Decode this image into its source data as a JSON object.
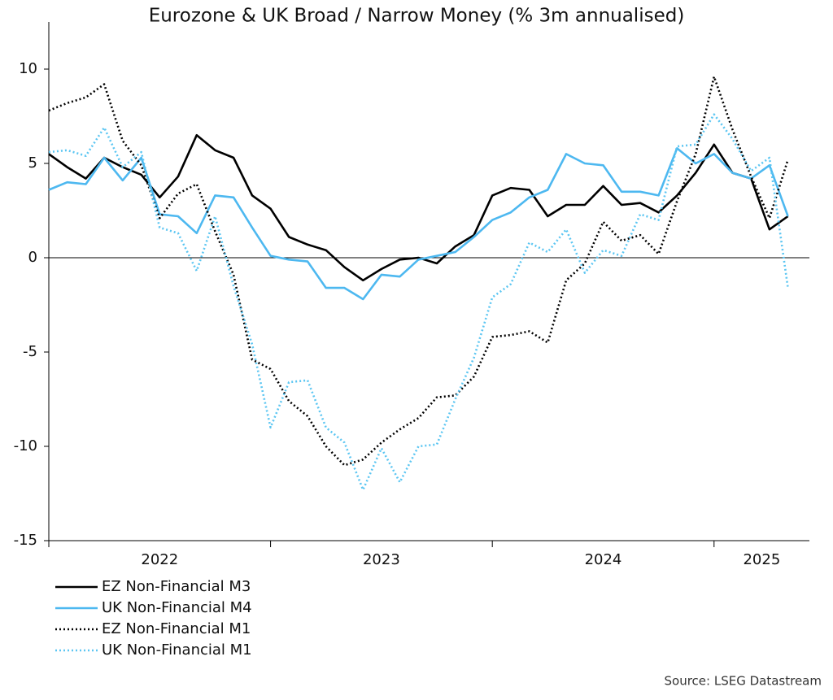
{
  "chart_data": {
    "type": "line",
    "title": "Eurozone & UK Broad / Narrow Money (% 3m annualised)",
    "source": "Source: LSEG Datastream",
    "x": [
      2022,
      2022.083,
      2022.167,
      2022.25,
      2022.333,
      2022.417,
      2022.5,
      2022.583,
      2022.667,
      2022.75,
      2022.833,
      2022.917,
      2023,
      2023.083,
      2023.167,
      2023.25,
      2023.333,
      2023.417,
      2023.5,
      2023.583,
      2023.667,
      2023.75,
      2023.833,
      2023.917,
      2024,
      2024.083,
      2024.167,
      2024.25,
      2024.333,
      2024.417,
      2024.5,
      2024.583,
      2024.667,
      2024.75,
      2024.833,
      2024.917,
      2025,
      2025.083,
      2025.167,
      2025.25,
      2025.333
    ],
    "series": [
      {
        "name": "EZ Non-Financial M3",
        "color": "#000000",
        "style": "solid",
        "values": [
          5.5,
          4.8,
          4.2,
          5.3,
          4.8,
          4.4,
          3.2,
          4.3,
          6.5,
          5.7,
          5.3,
          3.3,
          2.6,
          1.1,
          0.7,
          0.4,
          -0.5,
          -1.2,
          -0.6,
          -0.1,
          0.0,
          -0.3,
          0.6,
          1.2,
          3.3,
          3.7,
          3.6,
          2.2,
          2.8,
          2.8,
          3.8,
          2.8,
          2.9,
          2.4,
          3.3,
          4.5,
          6.0,
          4.5,
          4.2,
          1.5,
          2.2
        ]
      },
      {
        "name": "UK Non-Financial M4",
        "color": "#4db8f0",
        "style": "solid",
        "values": [
          3.6,
          4.0,
          3.9,
          5.3,
          4.1,
          5.3,
          2.3,
          2.2,
          1.3,
          3.3,
          3.2,
          1.6,
          0.1,
          -0.1,
          -0.2,
          -1.6,
          -1.6,
          -2.2,
          -0.9,
          -1.0,
          -0.1,
          0.1,
          0.3,
          1.1,
          2.0,
          2.4,
          3.2,
          3.6,
          5.5,
          5.0,
          4.9,
          3.5,
          3.5,
          3.3,
          5.8,
          5.0,
          5.5,
          4.5,
          4.2,
          4.9,
          2.2
        ]
      },
      {
        "name": "EZ Non-Financial M1",
        "color": "#000000",
        "style": "dotted",
        "values": [
          7.8,
          8.2,
          8.5,
          9.2,
          6.2,
          4.9,
          2.1,
          3.4,
          3.9,
          1.4,
          -0.9,
          -5.4,
          -5.9,
          -7.6,
          -8.4,
          -10.0,
          -11.0,
          -10.7,
          -9.8,
          -9.1,
          -8.5,
          -7.4,
          -7.3,
          -6.3,
          -4.2,
          -4.1,
          -3.9,
          -4.5,
          -1.2,
          -0.3,
          1.9,
          0.9,
          1.2,
          0.2,
          3.0,
          5.5,
          9.6,
          6.8,
          4.3,
          2.1,
          5.2
        ]
      },
      {
        "name": "UK Non-Financial M1",
        "color": "#5cc6f2",
        "style": "dotted",
        "values": [
          5.6,
          5.7,
          5.4,
          6.9,
          4.8,
          5.6,
          1.6,
          1.3,
          -0.7,
          2.2,
          -1.5,
          -4.6,
          -9.0,
          -6.6,
          -6.5,
          -9.0,
          -9.8,
          -12.3,
          -10.1,
          -11.9,
          -10.0,
          -9.9,
          -7.5,
          -5.3,
          -2.1,
          -1.4,
          0.8,
          0.3,
          1.5,
          -0.8,
          0.4,
          0.1,
          2.3,
          2.0,
          5.9,
          6.0,
          7.6,
          6.3,
          4.6,
          5.3,
          -1.6
        ]
      }
    ],
    "xlim": [
      2022,
      2025.43
    ],
    "xticks": [
      2022,
      2023,
      2024,
      2025
    ],
    "ylim": [
      -15,
      12.5
    ],
    "yticks": [
      -15,
      -10,
      -5,
      0,
      5,
      10
    ],
    "zero_line": true,
    "legend": "bottom-left"
  }
}
